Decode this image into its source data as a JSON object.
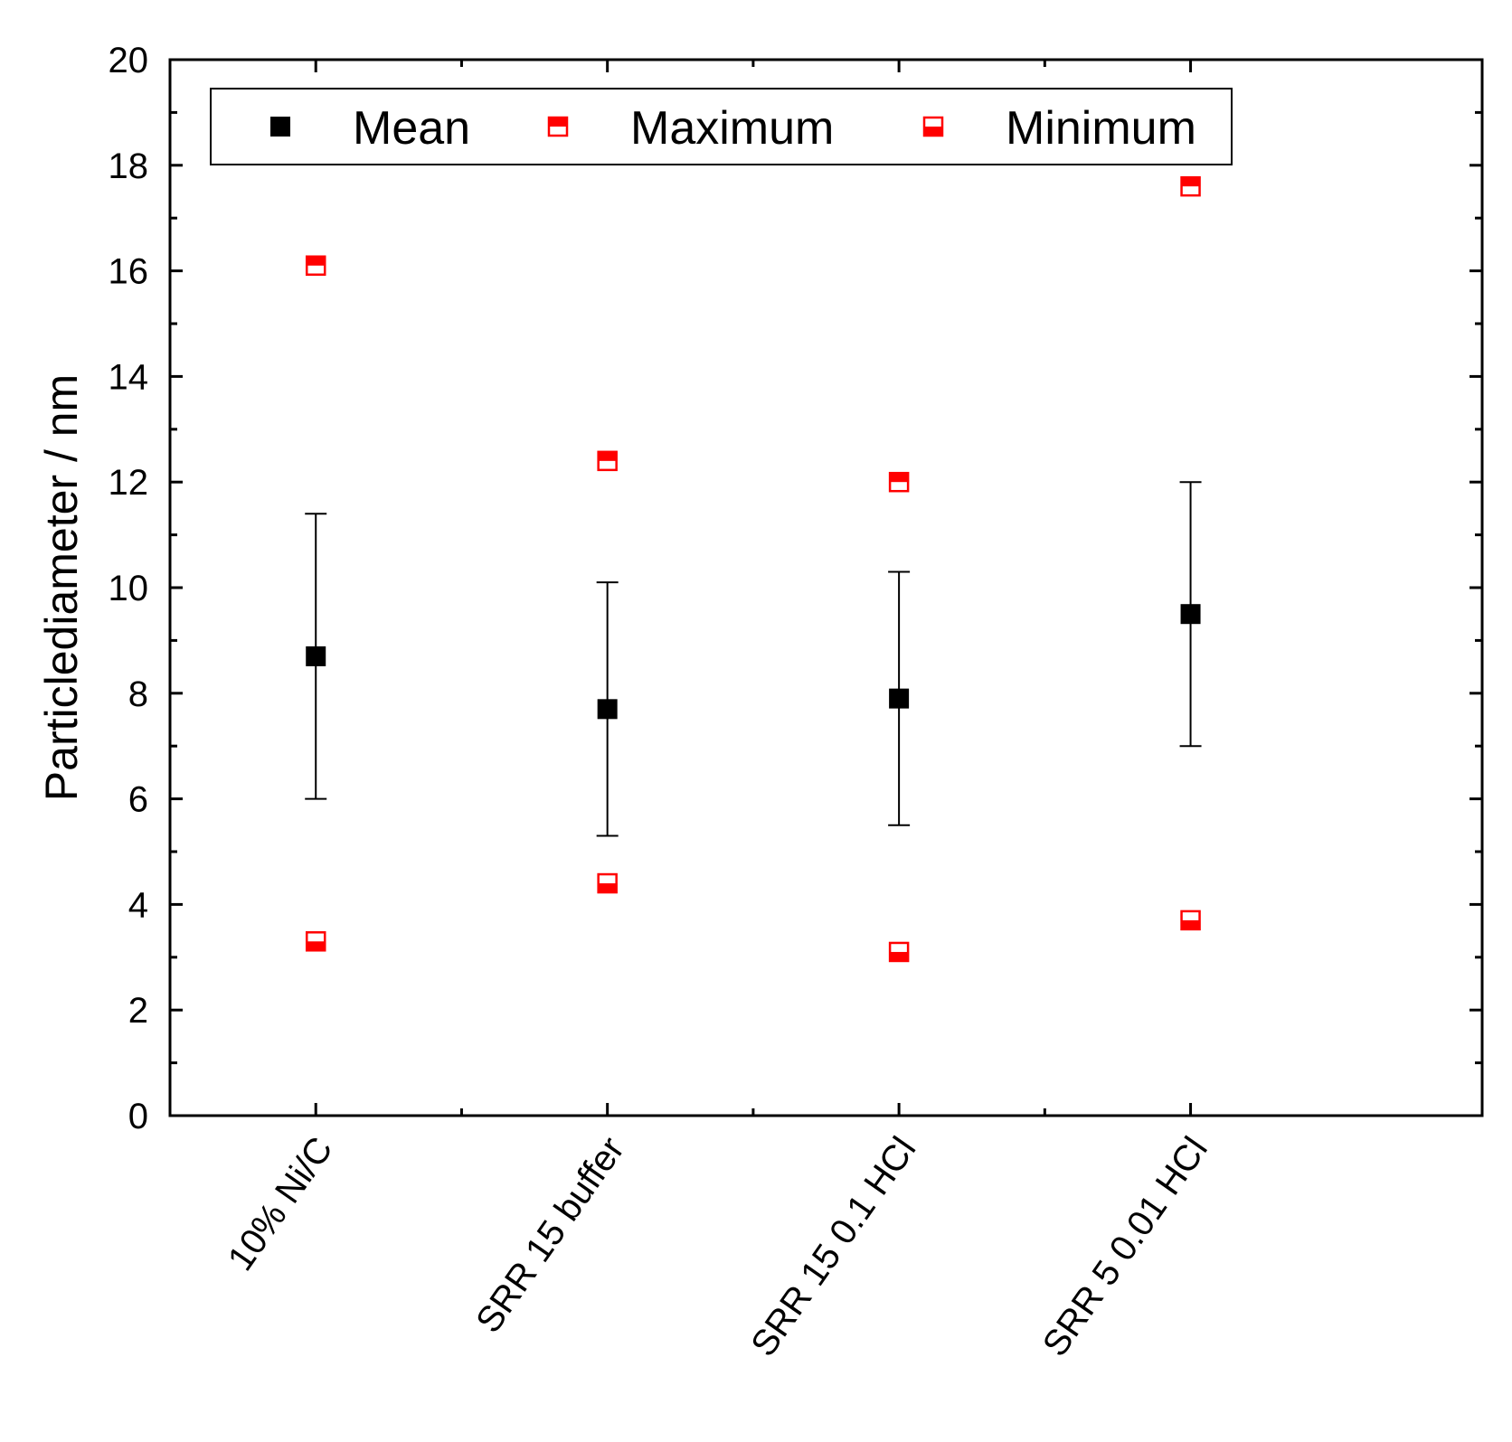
{
  "chart_data": {
    "type": "scatter",
    "ylabel": "Particlediameter  /  nm",
    "xlabel": "",
    "ylim": [
      0,
      20
    ],
    "yticks": [
      0,
      2,
      4,
      6,
      8,
      10,
      12,
      14,
      16,
      18,
      20
    ],
    "categories": [
      "10% Ni/C",
      "SRR 15 buffer",
      "SRR 15 0.1 HCl",
      "SRR 5 0.01 HCl"
    ],
    "legend_position": "top",
    "series": [
      {
        "name": "Mean",
        "marker": "filled-square",
        "color": "#000000",
        "values": [
          8.7,
          7.7,
          7.9,
          9.5
        ],
        "error_low": [
          6.0,
          5.3,
          5.5,
          7.0
        ],
        "error_high": [
          11.4,
          10.1,
          10.3,
          12.0
        ]
      },
      {
        "name": "Maximum",
        "marker": "top-half-filled-square",
        "color": "#ff0000",
        "values": [
          16.1,
          12.4,
          12.0,
          17.6
        ]
      },
      {
        "name": "Minimum",
        "marker": "bottom-half-filled-square",
        "color": "#ff0000",
        "values": [
          3.3,
          4.4,
          3.1,
          3.7
        ]
      }
    ]
  }
}
